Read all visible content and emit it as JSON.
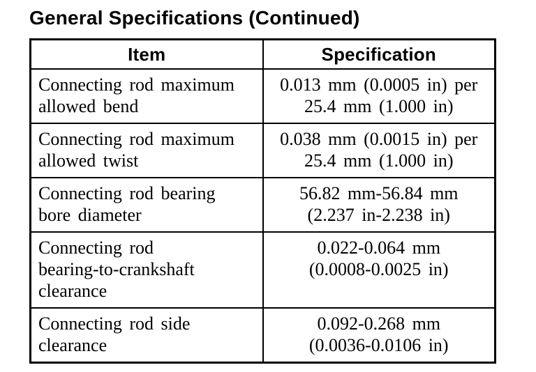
{
  "page": {
    "title": "General Specifications (Continued)"
  },
  "table": {
    "columns": [
      "Item",
      "Specification"
    ],
    "rows": [
      {
        "item": "Connecting rod maximum\nallowed bend",
        "spec": "0.013 mm (0.0005 in) per\n25.4 mm (1.000 in)"
      },
      {
        "item": "Connecting rod maximum\nallowed twist",
        "spec": "0.038 mm (0.0015 in) per\n25.4 mm (1.000 in)"
      },
      {
        "item": "Connecting rod bearing\nbore diameter",
        "spec": "56.82 mm-56.84 mm\n(2.237 in-2.238 in)"
      },
      {
        "item": "Connecting rod\nbearing-to-crankshaft\nclearance",
        "spec": "0.022-0.064 mm\n(0.0008-0.0025 in)"
      },
      {
        "item": "Connecting rod side\nclearance",
        "spec": "0.092-0.268 mm\n(0.0036-0.0106 in)"
      }
    ]
  },
  "colors": {
    "text": "#000000",
    "background": "#ffffff",
    "border": "#000000"
  }
}
